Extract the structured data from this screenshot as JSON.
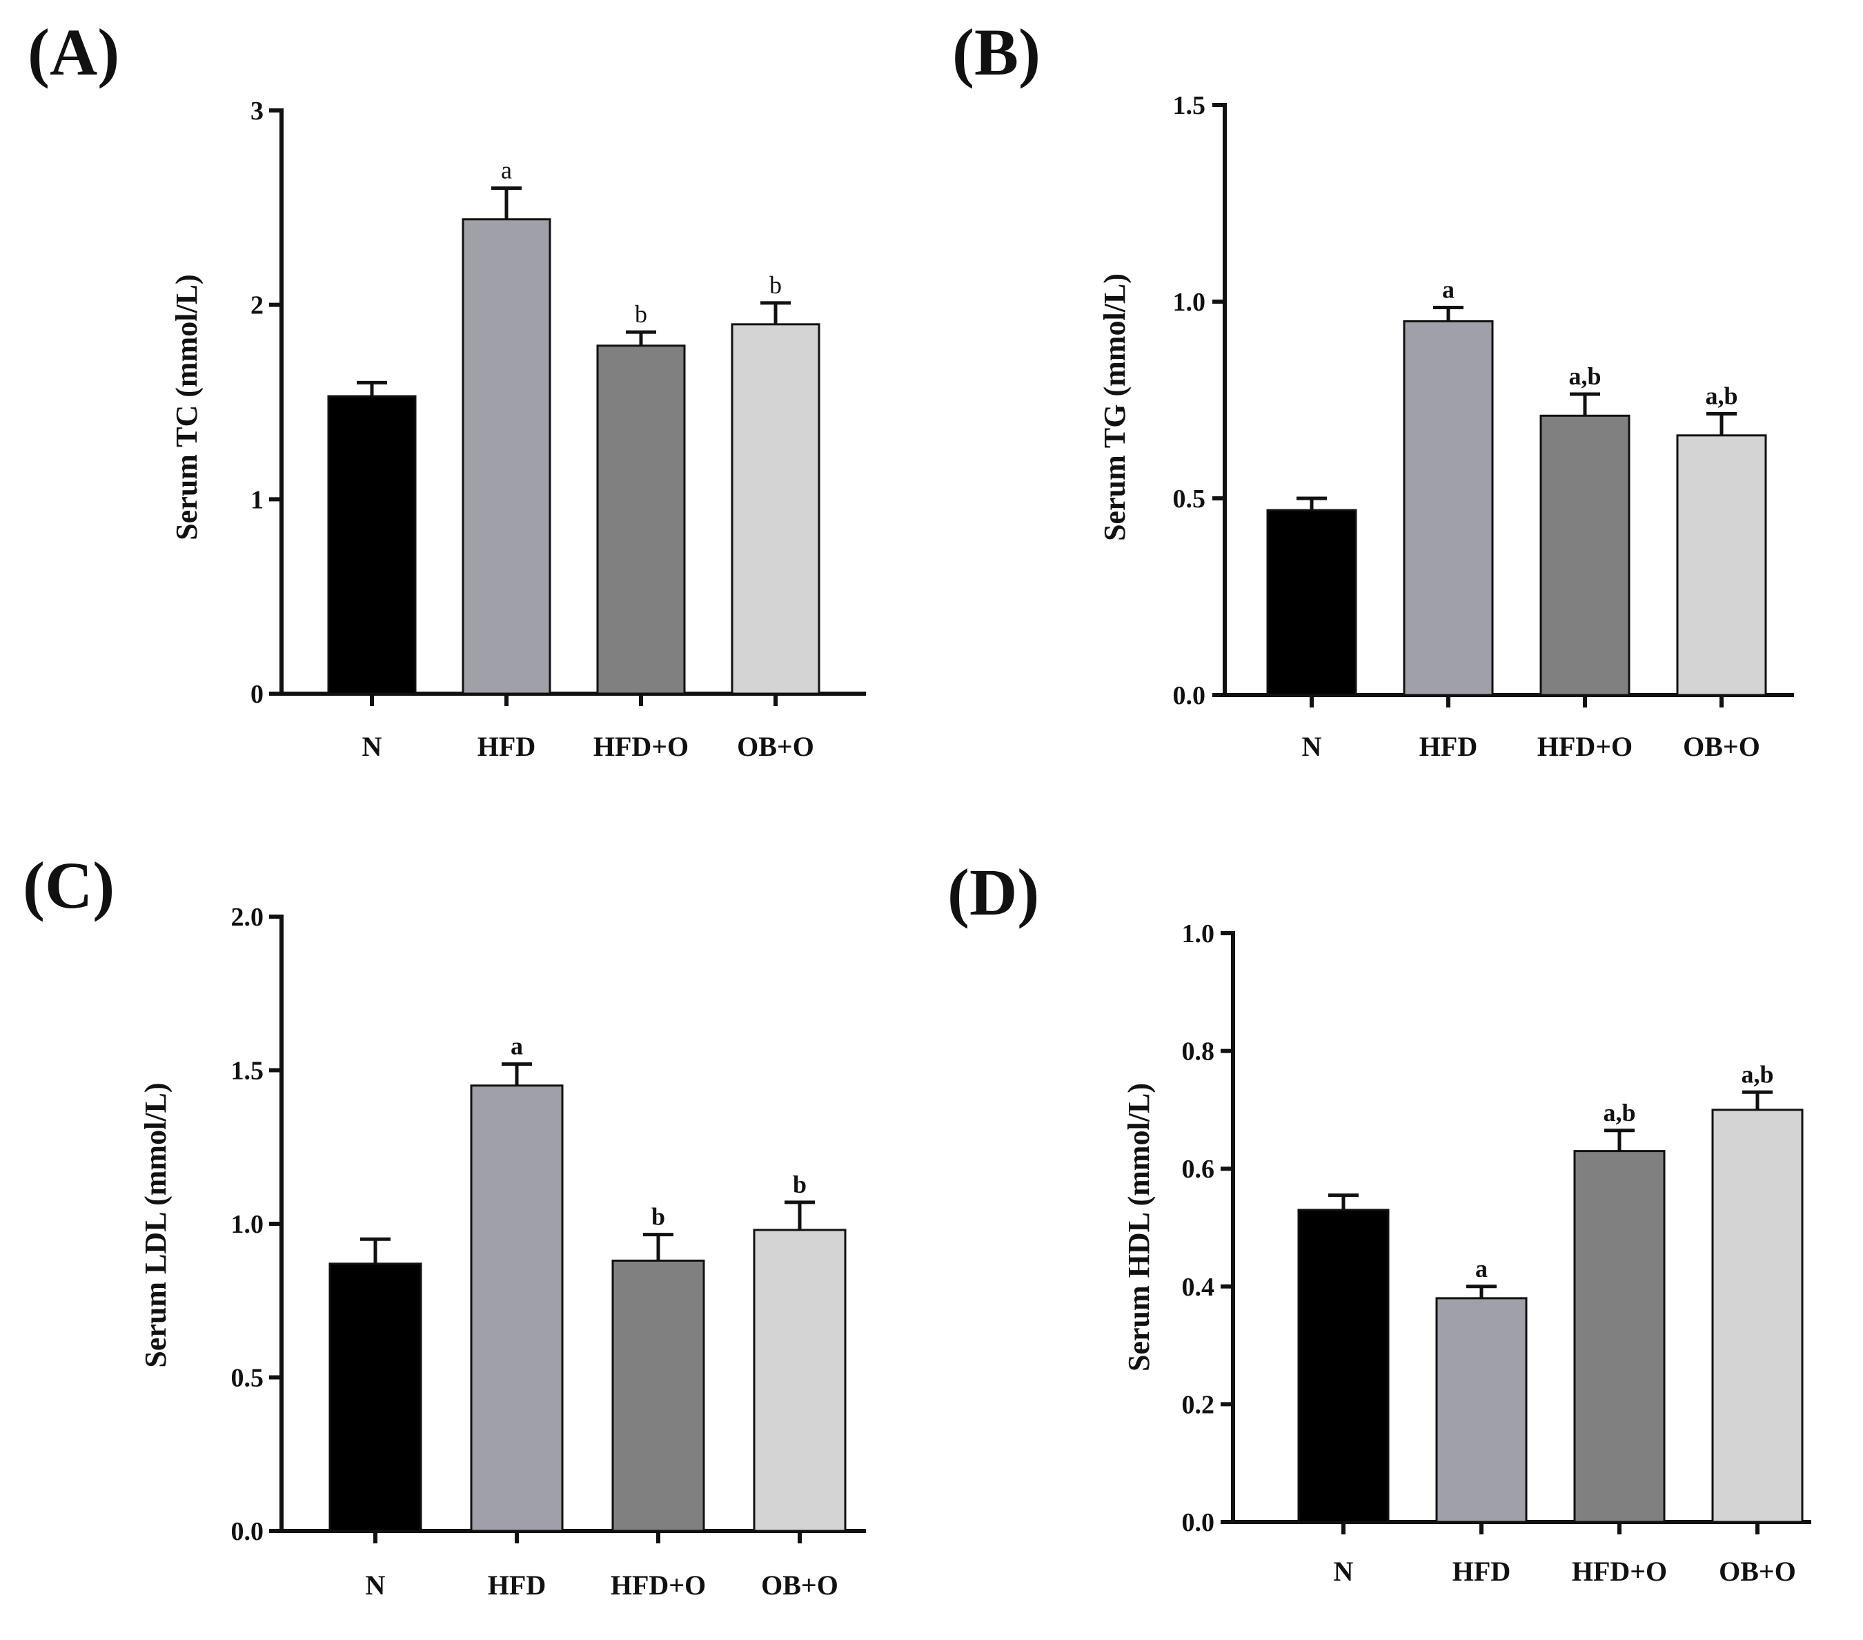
{
  "chart_data": [
    {
      "panel": "(A)",
      "type": "bar",
      "title": "",
      "xlabel": "",
      "ylabel": "Serum TC (mmol/L)",
      "ylim": [
        0,
        3
      ],
      "yticks": [
        0,
        1,
        2,
        3
      ],
      "tick_labels": [
        "0",
        "1",
        "2",
        "3"
      ],
      "categories": [
        "N",
        "HFD",
        "HFD+O",
        "OB+O"
      ],
      "values": [
        1.53,
        2.44,
        1.79,
        1.9
      ],
      "errors": [
        0.07,
        0.16,
        0.07,
        0.11
      ],
      "annotations": [
        "",
        "a",
        "b",
        "b"
      ],
      "annotation_bold": false,
      "colors": [
        "#000000",
        "#a0a0a8",
        "#808080",
        "#d4d4d4"
      ]
    },
    {
      "panel": "(B)",
      "type": "bar",
      "title": "",
      "xlabel": "",
      "ylabel": "Serum TG (mmol/L)",
      "ylim": [
        0,
        1.5
      ],
      "yticks": [
        0,
        0.5,
        1.0,
        1.5
      ],
      "tick_labels": [
        "0.0",
        "0.5",
        "1.0",
        "1.5"
      ],
      "categories": [
        "N",
        "HFD",
        "HFD+O",
        "OB+O"
      ],
      "values": [
        0.47,
        0.95,
        0.71,
        0.66
      ],
      "errors": [
        0.03,
        0.035,
        0.055,
        0.055
      ],
      "annotations": [
        "",
        "a",
        "a,b",
        "a,b"
      ],
      "annotation_bold": true,
      "colors": [
        "#000000",
        "#a0a0a8",
        "#808080",
        "#d4d4d4"
      ]
    },
    {
      "panel": "(C)",
      "type": "bar",
      "title": "",
      "xlabel": "",
      "ylabel": "Serum LDL (mmol/L)",
      "ylim": [
        0,
        2.0
      ],
      "yticks": [
        0,
        0.5,
        1.0,
        1.5,
        2.0
      ],
      "tick_labels": [
        "0.0",
        "0.5",
        "1.0",
        "1.5",
        "2.0"
      ],
      "categories": [
        "N",
        "HFD",
        "HFD+O",
        "OB+O"
      ],
      "values": [
        0.87,
        1.45,
        0.88,
        0.98
      ],
      "errors": [
        0.08,
        0.07,
        0.085,
        0.09
      ],
      "annotations": [
        "",
        "a",
        "b",
        "b"
      ],
      "annotation_bold": true,
      "colors": [
        "#000000",
        "#a0a0a8",
        "#808080",
        "#d4d4d4"
      ]
    },
    {
      "panel": "(D)",
      "type": "bar",
      "title": "",
      "xlabel": "",
      "ylabel": "Serum HDL (mmol/L)",
      "ylim": [
        0,
        1.0
      ],
      "yticks": [
        0,
        0.2,
        0.4,
        0.6,
        0.8,
        1.0
      ],
      "tick_labels": [
        "0.0",
        "0.2",
        "0.4",
        "0.6",
        "0.8",
        "1.0"
      ],
      "categories": [
        "N",
        "HFD",
        "HFD+O",
        "OB+O"
      ],
      "values": [
        0.53,
        0.38,
        0.63,
        0.7
      ],
      "errors": [
        0.025,
        0.02,
        0.035,
        0.03
      ],
      "annotations": [
        "",
        "a",
        "a,b",
        "a,b"
      ],
      "annotation_bold": true,
      "colors": [
        "#000000",
        "#a0a0a8",
        "#808080",
        "#d4d4d4"
      ]
    }
  ]
}
